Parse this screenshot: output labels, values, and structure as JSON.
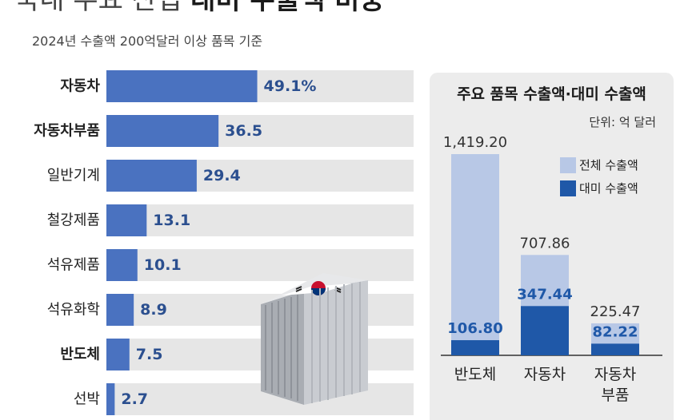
{
  "title": {
    "normal": "국내 주요 산업",
    "bold": "대미 수출액 비중"
  },
  "subtitle": "2024년 수출액 200억달러 이상 품목 기준",
  "colors": {
    "bar": "#4a72c0",
    "bar_track": "#e6e6e6",
    "total_export": "#b8c8e6",
    "us_export": "#1f58a8",
    "panel_bg": "#ececec"
  },
  "chart_data": [
    {
      "type": "bar",
      "orientation": "horizontal",
      "categories": [
        "자동차",
        "자동차부품",
        "일반기계",
        "철강제품",
        "석유제품",
        "석유화학",
        "반도체",
        "선박"
      ],
      "bold_categories": [
        "자동차",
        "자동차부품",
        "반도체"
      ],
      "values": [
        49.1,
        36.5,
        29.4,
        13.1,
        10.1,
        8.9,
        7.5,
        2.7
      ],
      "value_labels": [
        "49.1%",
        "36.5",
        "29.4",
        "13.1",
        "10.1",
        "8.9",
        "7.5",
        "2.7"
      ],
      "xlim": [
        0,
        100
      ],
      "grid": false
    },
    {
      "type": "bar",
      "title": "주요 품목 수출액·대미 수출액",
      "unit": "단위: 억 달러",
      "categories": [
        "반도체",
        "자동차",
        "자동차 부품"
      ],
      "category_lines": [
        [
          "반도체"
        ],
        [
          "자동차"
        ],
        [
          "자동차",
          "부품"
        ]
      ],
      "series": [
        {
          "name": "전체 수출액",
          "values": [
            1419.2,
            707.86,
            225.47
          ],
          "labels": [
            "1,419.20",
            "707.86",
            "225.47"
          ]
        },
        {
          "name": "대미 수출액",
          "values": [
            106.8,
            347.44,
            82.22
          ],
          "labels": [
            "106.80",
            "347.44",
            "82.22"
          ]
        }
      ],
      "overlay": true,
      "legend": "top-right",
      "ylim": [
        0,
        1419.2
      ],
      "grid": false
    }
  ]
}
